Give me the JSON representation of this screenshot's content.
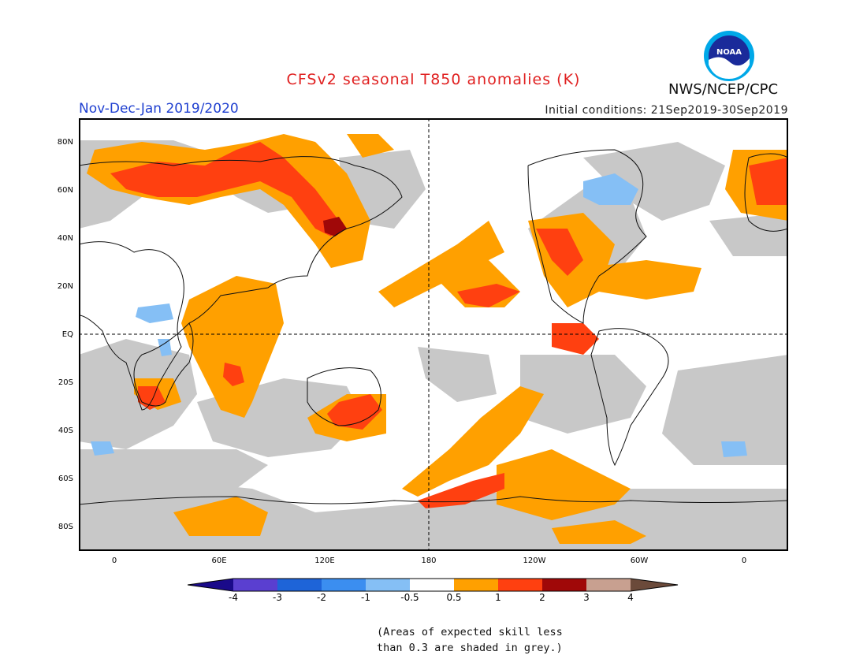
{
  "title": "CFSv2 seasonal T850 anomalies (K)",
  "season": "Nov-Dec-Jan 2019/2020",
  "initial_conditions": "Initial conditions: 21Sep2019-30Sep2019",
  "organization": "NWS/NCEP/CPC",
  "logo_text": "NOAA",
  "lat_labels": [
    "80N",
    "60N",
    "40N",
    "20N",
    "EQ",
    "20S",
    "40S",
    "60S",
    "80S"
  ],
  "lon_labels": [
    "0",
    "60E",
    "120E",
    "180",
    "120W",
    "60W",
    "0"
  ],
  "legend": {
    "ticks": [
      "-4",
      "-3",
      "-2",
      "-1",
      "-0.5",
      "0.5",
      "1",
      "2",
      "3",
      "4"
    ],
    "colors": [
      "#1a0a8a",
      "#5a3fd0",
      "#1e64d8",
      "#3b8ef0",
      "#85bff5",
      "#ffffff",
      "#ffa000",
      "#ff4010",
      "#a00808",
      "#c8a090",
      "#6b4a3a"
    ]
  },
  "note_line1": "(Areas of expected skill less",
  "note_line2": "than 0.3 are shaded in grey.)",
  "colors": {
    "grey": "#c8c8c8",
    "anomaly_0_5_1": "#ffa000",
    "anomaly_1_2": "#ff4010",
    "anomaly_2_3": "#a00808",
    "anomaly_neg_0_5_1": "#85bff5"
  }
}
